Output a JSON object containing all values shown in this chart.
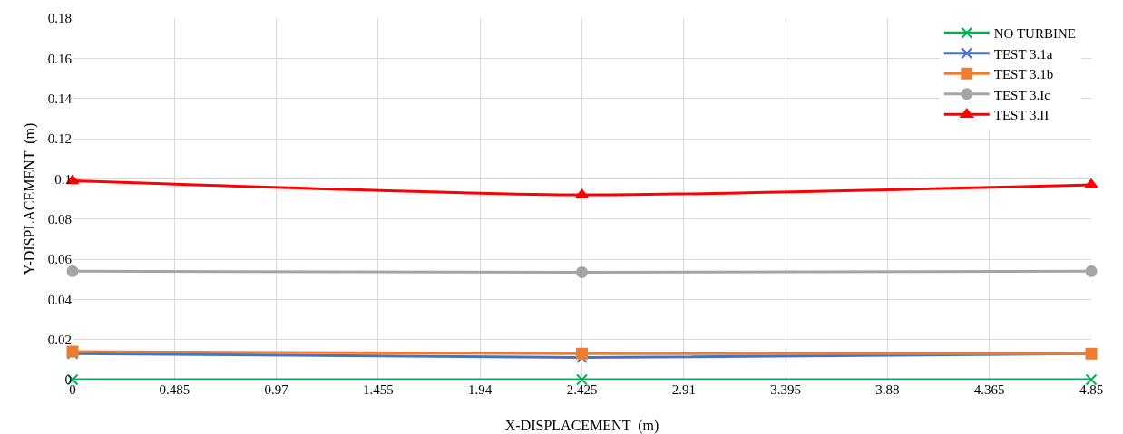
{
  "chart_data": {
    "type": "line",
    "xlabel": "X-DISPLACEMENT  (m)",
    "ylabel": "Y-DISPLACEMENT  (m)",
    "x": [
      0,
      2.425,
      4.85
    ],
    "series": [
      {
        "name": "NO TURBINE",
        "color": "#00b050",
        "marker": "cross",
        "values": [
          0,
          0,
          0
        ]
      },
      {
        "name": "TEST 3.1a",
        "color": "#4472c4",
        "marker": "cross",
        "values": [
          0.013,
          0.011,
          0.013
        ]
      },
      {
        "name": "TEST 3.1b",
        "color": "#ed7d31",
        "marker": "square",
        "values": [
          0.014,
          0.013,
          0.013
        ]
      },
      {
        "name": "TEST 3.Ic",
        "color": "#a5a5a5",
        "marker": "circle",
        "values": [
          0.054,
          0.0535,
          0.054
        ]
      },
      {
        "name": "TEST 3.II",
        "color": "#ff0000",
        "marker": "triangle",
        "values": [
          0.099,
          0.092,
          0.097
        ]
      }
    ],
    "xlim": [
      0,
      4.85
    ],
    "xticks": [
      0,
      0.485,
      0.97,
      1.455,
      1.94,
      2.425,
      2.91,
      3.395,
      3.88,
      4.365,
      4.85
    ],
    "ylim": [
      0,
      0.18
    ],
    "yticks": [
      0,
      0.02,
      0.04,
      0.06,
      0.08,
      0.1,
      0.12,
      0.14,
      0.16,
      0.18
    ],
    "grid": true,
    "legend": "top right"
  }
}
